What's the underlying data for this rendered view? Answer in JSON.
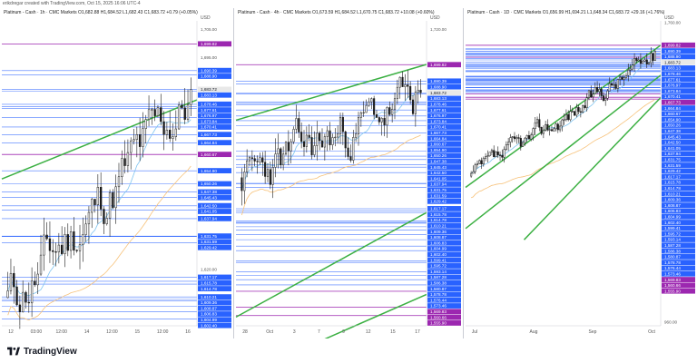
{
  "header": {
    "text": "erikdregar created with TradingView.com, Oct 15, 2025 16:06 UTC-4"
  },
  "brand": {
    "name": "TradingView"
  },
  "colors": {
    "up": "#1b1b1b",
    "down": "#1b1b1b",
    "trend": "#3cb043",
    "level": "#2962ff",
    "resistance": "#9c27b0",
    "ma_blue": "#7fc4f0",
    "ma_orange": "#f7c27a"
  },
  "chart_data": [
    {
      "type": "candlestick",
      "title": "Platinum - Cash · 1h · CMC Markets",
      "ohlc_text": "O1,682.88 H1,684.52 L1,682.43 C1,683.72 +0.79 (+0.05%)",
      "currency": "USD",
      "y_ticks": [
        1705.0,
        1695.0,
        1620.0
      ],
      "x_ticks": [
        "12",
        "03:00",
        "12:00",
        "14",
        "12:00",
        "15",
        "12:00",
        "16"
      ],
      "ylim": [
        1600,
        1708
      ],
      "price_labels": [
        {
          "v": 1699.82,
          "kind": "purple"
        },
        {
          "v": 1690.39,
          "kind": "blue"
        },
        {
          "v": 1688.9,
          "kind": "blue"
        },
        {
          "v": 1683.72,
          "kind": "last"
        },
        {
          "v": 1683.13,
          "kind": "blue"
        },
        {
          "v": 1678.46,
          "kind": "blue"
        },
        {
          "v": 1677.61,
          "kind": "blue"
        },
        {
          "v": 1676.97,
          "kind": "blue"
        },
        {
          "v": 1673.84,
          "kind": "blue"
        },
        {
          "v": 1670.41,
          "kind": "blue"
        },
        {
          "v": 1667.73,
          "kind": "blue"
        },
        {
          "v": 1664.84,
          "kind": "blue"
        },
        {
          "v": 1660.67,
          "kind": "purple"
        },
        {
          "v": 1654.9,
          "kind": "blue"
        },
        {
          "v": 1650.26,
          "kind": "blue"
        },
        {
          "v": 1647.38,
          "kind": "blue"
        },
        {
          "v": 1645.43,
          "kind": "blue"
        },
        {
          "v": 1642.5,
          "kind": "blue"
        },
        {
          "v": 1641.05,
          "kind": "blue"
        },
        {
          "v": 1637.94,
          "kind": "blue"
        },
        {
          "v": 1631.75,
          "kind": "blue"
        },
        {
          "v": 1631.59,
          "kind": "blue"
        },
        {
          "v": 1629.42,
          "kind": "blue"
        },
        {
          "v": 1617.17,
          "kind": "blue"
        },
        {
          "v": 1615.78,
          "kind": "blue"
        },
        {
          "v": 1614.78,
          "kind": "blue"
        },
        {
          "v": 1610.21,
          "kind": "blue"
        },
        {
          "v": 1609.36,
          "kind": "blue"
        },
        {
          "v": 1608.87,
          "kind": "blue"
        },
        {
          "v": 1606.83,
          "kind": "blue"
        },
        {
          "v": 1604.99,
          "kind": "blue"
        },
        {
          "v": 1602.4,
          "kind": "blue"
        }
      ],
      "trendlines": [
        {
          "x1": 0,
          "y1": 1652,
          "x2": 1,
          "y2": 1680
        }
      ],
      "seed": 11,
      "n": 62,
      "start": 1610,
      "end": 1683.72,
      "vol": 8
    },
    {
      "type": "candlestick",
      "title": "Platinum - Cash · 4h · CMC Markets",
      "ohlc_text": "O1,673.59 H1,684.52 L1,670.75 C1,683.72 +10.08 (+0.60%)",
      "currency": "USD",
      "y_ticks": [
        1720.0
      ],
      "x_ticks": [
        "28",
        "Oct",
        "3",
        "7",
        "9",
        "12",
        "15",
        "17"
      ],
      "ylim": [
        1550,
        1725
      ],
      "price_labels": [
        {
          "v": 1699.82,
          "kind": "purple"
        },
        {
          "v": 1690.39,
          "kind": "blue"
        },
        {
          "v": 1688.9,
          "kind": "blue"
        },
        {
          "v": 1683.72,
          "kind": "last"
        },
        {
          "v": 1683.13,
          "kind": "blue"
        },
        {
          "v": 1678.46,
          "kind": "blue"
        },
        {
          "v": 1677.61,
          "kind": "blue"
        },
        {
          "v": 1673.84,
          "kind": "blue"
        },
        {
          "v": 1676.97,
          "kind": "blue"
        },
        {
          "v": 1670.41,
          "kind": "blue"
        },
        {
          "v": 1667.73,
          "kind": "blue"
        },
        {
          "v": 1664.84,
          "kind": "blue"
        },
        {
          "v": 1660.67,
          "kind": "blue"
        },
        {
          "v": 1654.9,
          "kind": "blue"
        },
        {
          "v": 1650.26,
          "kind": "blue"
        },
        {
          "v": 1647.38,
          "kind": "blue"
        },
        {
          "v": 1645.43,
          "kind": "blue"
        },
        {
          "v": 1642.5,
          "kind": "blue"
        },
        {
          "v": 1641.05,
          "kind": "blue"
        },
        {
          "v": 1637.94,
          "kind": "blue"
        },
        {
          "v": 1631.75,
          "kind": "blue"
        },
        {
          "v": 1631.59,
          "kind": "blue"
        },
        {
          "v": 1629.42,
          "kind": "blue"
        },
        {
          "v": 1617.17,
          "kind": "blue"
        },
        {
          "v": 1615.78,
          "kind": "blue"
        },
        {
          "v": 1614.78,
          "kind": "blue"
        },
        {
          "v": 1610.21,
          "kind": "blue"
        },
        {
          "v": 1609.36,
          "kind": "blue"
        },
        {
          "v": 1608.87,
          "kind": "blue"
        },
        {
          "v": 1606.83,
          "kind": "blue"
        },
        {
          "v": 1604.99,
          "kind": "blue"
        },
        {
          "v": 1602.4,
          "kind": "blue"
        },
        {
          "v": 1599.41,
          "kind": "blue"
        },
        {
          "v": 1595.72,
          "kind": "blue"
        },
        {
          "v": 1593.14,
          "kind": "blue"
        },
        {
          "v": 1587.28,
          "kind": "blue"
        },
        {
          "v": 1586.38,
          "kind": "blue"
        },
        {
          "v": 1580.87,
          "kind": "blue"
        },
        {
          "v": 1578.78,
          "kind": "blue"
        },
        {
          "v": 1576.44,
          "kind": "blue"
        },
        {
          "v": 1573.46,
          "kind": "blue"
        },
        {
          "v": 1569.83,
          "kind": "purple"
        },
        {
          "v": 1560.66,
          "kind": "purple"
        },
        {
          "v": 1555.9,
          "kind": "purple"
        }
      ],
      "trendlines": [
        {
          "x1": 0,
          "y1": 1668,
          "x2": 1,
          "y2": 1700
        },
        {
          "x1": 0,
          "y1": 1520,
          "x2": 1,
          "y2": 1568
        },
        {
          "x1": 0,
          "y1": 1555,
          "x2": 1,
          "y2": 1615
        }
      ],
      "seed": 23,
      "n": 70,
      "start": 1635,
      "end": 1683.72,
      "vol": 10
    },
    {
      "type": "candlestick",
      "title": "Platinum - Cash · 1D · CMC Markets",
      "ohlc_text": "O1,656.99 H1,694.21 L1,648.34 C1,683.72 +29.16 (+1.76%)",
      "currency": "USD",
      "y_ticks": [
        1760.0,
        960.0
      ],
      "x_ticks": [
        "Jul",
        "Aug",
        "Sep",
        "Oct"
      ],
      "ylim": [
        950,
        1765
      ],
      "price_labels": [
        {
          "v": 1699.82,
          "kind": "purple"
        },
        {
          "v": 1690.39,
          "kind": "blue"
        },
        {
          "v": 1688.9,
          "kind": "blue"
        },
        {
          "v": 1683.72,
          "kind": "last"
        },
        {
          "v": 1683.13,
          "kind": "blue"
        },
        {
          "v": 1678.46,
          "kind": "blue"
        },
        {
          "v": 1677.61,
          "kind": "blue"
        },
        {
          "v": 1676.97,
          "kind": "blue"
        },
        {
          "v": 1673.84,
          "kind": "blue"
        },
        {
          "v": 1670.41,
          "kind": "blue"
        },
        {
          "v": 1667.73,
          "kind": "purple"
        },
        {
          "v": 1664.84,
          "kind": "blue"
        },
        {
          "v": 1660.67,
          "kind": "blue"
        },
        {
          "v": 1654.9,
          "kind": "blue"
        },
        {
          "v": 1650.26,
          "kind": "blue"
        },
        {
          "v": 1647.38,
          "kind": "blue"
        },
        {
          "v": 1645.43,
          "kind": "blue"
        },
        {
          "v": 1642.5,
          "kind": "blue"
        },
        {
          "v": 1641.05,
          "kind": "blue"
        },
        {
          "v": 1637.94,
          "kind": "blue"
        },
        {
          "v": 1631.75,
          "kind": "blue"
        },
        {
          "v": 1631.59,
          "kind": "blue"
        },
        {
          "v": 1629.42,
          "kind": "blue"
        },
        {
          "v": 1617.17,
          "kind": "blue"
        },
        {
          "v": 1615.78,
          "kind": "blue"
        },
        {
          "v": 1614.78,
          "kind": "blue"
        },
        {
          "v": 1610.21,
          "kind": "blue"
        },
        {
          "v": 1609.36,
          "kind": "blue"
        },
        {
          "v": 1608.87,
          "kind": "blue"
        },
        {
          "v": 1606.83,
          "kind": "blue"
        },
        {
          "v": 1604.99,
          "kind": "blue"
        },
        {
          "v": 1602.4,
          "kind": "blue"
        },
        {
          "v": 1599.41,
          "kind": "blue"
        },
        {
          "v": 1595.72,
          "kind": "blue"
        },
        {
          "v": 1593.14,
          "kind": "blue"
        },
        {
          "v": 1587.28,
          "kind": "blue"
        },
        {
          "v": 1586.38,
          "kind": "blue"
        },
        {
          "v": 1580.87,
          "kind": "blue"
        },
        {
          "v": 1578.78,
          "kind": "blue"
        },
        {
          "v": 1576.44,
          "kind": "blue"
        },
        {
          "v": 1573.46,
          "kind": "blue"
        },
        {
          "v": 1569.83,
          "kind": "purple"
        },
        {
          "v": 1560.66,
          "kind": "purple"
        },
        {
          "v": 1555.9,
          "kind": "purple"
        }
      ],
      "trendlines": [
        {
          "x1": 0,
          "y1": 1320,
          "x2": 1,
          "y2": 1700
        },
        {
          "x1": 0,
          "y1": 1210,
          "x2": 1,
          "y2": 1620
        },
        {
          "x1": 0.3,
          "y1": 1180,
          "x2": 1,
          "y2": 1560
        }
      ],
      "seed": 37,
      "n": 90,
      "start": 1350,
      "end": 1683.72,
      "vol": 20
    }
  ]
}
